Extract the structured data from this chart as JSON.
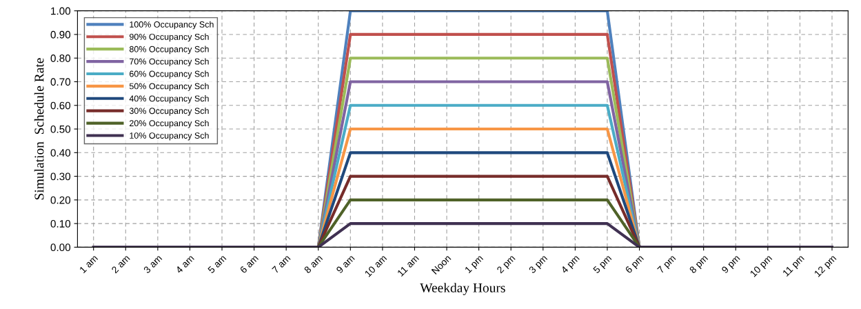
{
  "chart_data": {
    "type": "line",
    "xlabel": "Weekday Hours",
    "ylabel": "Simulation  Schedule Rate",
    "categories": [
      "1 am",
      "2 am",
      "3 am",
      "4 am",
      "5 am",
      "6 am",
      "7 am",
      "8 am",
      "9 am",
      "10 am",
      "11 am",
      "Noon",
      "1 pm",
      "2 pm",
      "3 pm",
      "4 pm",
      "5 pm",
      "6 pm",
      "7 pm",
      "8 pm",
      "9 pm",
      "10 pm",
      "11 pm",
      "12 pm"
    ],
    "series": [
      {
        "name": "100% Occupancy Sch",
        "color": "#4f81bd",
        "values": [
          null,
          null,
          null,
          null,
          null,
          null,
          null,
          0,
          1,
          1,
          1,
          1,
          1,
          1,
          1,
          1,
          1,
          0,
          null,
          null,
          null,
          null,
          null,
          null
        ]
      },
      {
        "name": "90% Occupancy Sch",
        "color": "#c0504d",
        "values": [
          null,
          null,
          null,
          null,
          null,
          null,
          null,
          0,
          0.9,
          0.9,
          0.9,
          0.9,
          0.9,
          0.9,
          0.9,
          0.9,
          0.9,
          0,
          null,
          null,
          null,
          null,
          null,
          null
        ]
      },
      {
        "name": "80% Occupancy Sch",
        "color": "#9bbb59",
        "values": [
          null,
          null,
          null,
          null,
          null,
          null,
          null,
          0,
          0.8,
          0.8,
          0.8,
          0.8,
          0.8,
          0.8,
          0.8,
          0.8,
          0.8,
          0,
          null,
          null,
          null,
          null,
          null,
          null
        ]
      },
      {
        "name": "70% Occupancy Sch",
        "color": "#8064a2",
        "values": [
          null,
          null,
          null,
          null,
          null,
          null,
          null,
          0,
          0.7,
          0.7,
          0.7,
          0.7,
          0.7,
          0.7,
          0.7,
          0.7,
          0.7,
          0,
          null,
          null,
          null,
          null,
          null,
          null
        ]
      },
      {
        "name": "60% Occupancy Sch",
        "color": "#4bacc6",
        "values": [
          null,
          null,
          null,
          null,
          null,
          null,
          null,
          0,
          0.6,
          0.6,
          0.6,
          0.6,
          0.6,
          0.6,
          0.6,
          0.6,
          0.6,
          0,
          null,
          null,
          null,
          null,
          null,
          null
        ]
      },
      {
        "name": "50% Occupancy Sch",
        "color": "#f79646",
        "values": [
          null,
          null,
          null,
          null,
          null,
          null,
          null,
          0,
          0.5,
          0.5,
          0.5,
          0.5,
          0.5,
          0.5,
          0.5,
          0.5,
          0.5,
          0,
          null,
          null,
          null,
          null,
          null,
          null
        ]
      },
      {
        "name": "40% Occupancy Sch",
        "color": "#1f497d",
        "values": [
          null,
          null,
          null,
          null,
          null,
          null,
          null,
          0,
          0.4,
          0.4,
          0.4,
          0.4,
          0.4,
          0.4,
          0.4,
          0.4,
          0.4,
          0,
          null,
          null,
          null,
          null,
          null,
          null
        ]
      },
      {
        "name": "30% Occupancy Sch",
        "color": "#772c2a",
        "values": [
          null,
          null,
          null,
          null,
          null,
          null,
          null,
          0,
          0.3,
          0.3,
          0.3,
          0.3,
          0.3,
          0.3,
          0.3,
          0.3,
          0.3,
          0,
          null,
          null,
          null,
          null,
          null,
          null
        ]
      },
      {
        "name": "20% Occupancy Sch",
        "color": "#4f6228",
        "values": [
          null,
          null,
          null,
          null,
          null,
          null,
          null,
          0,
          0.2,
          0.2,
          0.2,
          0.2,
          0.2,
          0.2,
          0.2,
          0.2,
          0.2,
          0,
          null,
          null,
          null,
          null,
          null,
          null
        ]
      },
      {
        "name": "10% Occupancy Sch",
        "color": "#403152",
        "values": [
          0,
          0,
          0,
          0,
          0,
          0,
          0,
          0,
          0.1,
          0.1,
          0.1,
          0.1,
          0.1,
          0.1,
          0.1,
          0.1,
          0.1,
          0,
          0,
          0,
          0,
          0,
          0,
          0
        ]
      }
    ],
    "ylim": [
      0,
      1
    ],
    "yticks": [
      {
        "value": 0,
        "label": "0.00"
      },
      {
        "value": 0.1,
        "label": "0.10"
      },
      {
        "value": 0.2,
        "label": "0.20"
      },
      {
        "value": 0.3,
        "label": "0.30"
      },
      {
        "value": 0.4,
        "label": "0.40"
      },
      {
        "value": 0.5,
        "label": "0.50"
      },
      {
        "value": 0.6,
        "label": "0.60"
      },
      {
        "value": 0.7,
        "label": "0.70"
      },
      {
        "value": 0.8,
        "label": "0.80"
      },
      {
        "value": 0.9,
        "label": "0.90"
      },
      {
        "value": 1,
        "label": "1.00"
      }
    ],
    "grid": true,
    "legend": "top left",
    "line_style": "solid",
    "marker": "none"
  }
}
